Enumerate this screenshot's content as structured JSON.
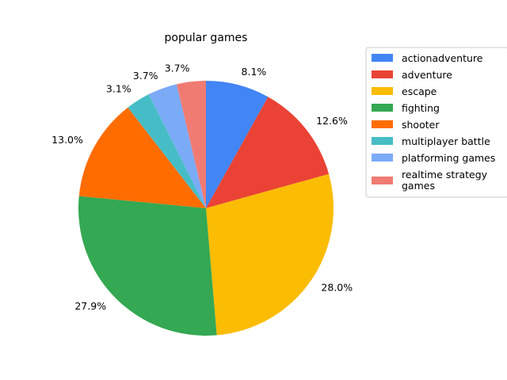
{
  "chart_data": {
    "type": "pie",
    "title": "popular games",
    "start_angle_deg": 90,
    "direction": "clockwise",
    "legend_position": "right",
    "slices": [
      {
        "label": "actionadventure",
        "label_lines": [
          "actionadventure"
        ],
        "value": 8.1,
        "pct_label": "8.1%",
        "color": "#4285f4"
      },
      {
        "label": "adventure",
        "label_lines": [
          "adventure"
        ],
        "value": 12.6,
        "pct_label": "12.6%",
        "color": "#ea4335"
      },
      {
        "label": "escape",
        "label_lines": [
          "escape"
        ],
        "value": 28.0,
        "pct_label": "28.0%",
        "color": "#fbbc04"
      },
      {
        "label": "fighting",
        "label_lines": [
          "fighting"
        ],
        "value": 27.9,
        "pct_label": "27.9%",
        "color": "#34a853"
      },
      {
        "label": "shooter",
        "label_lines": [
          "shooter"
        ],
        "value": 13.0,
        "pct_label": "13.0%",
        "color": "#ff6d01"
      },
      {
        "label": "multiplayer battle",
        "label_lines": [
          "multiplayer battle"
        ],
        "value": 3.1,
        "pct_label": "3.1%",
        "color": "#46bdc6"
      },
      {
        "label": "platforming games",
        "label_lines": [
          "platforming games"
        ],
        "value": 3.7,
        "pct_label": "3.7%",
        "color": "#7baaf7"
      },
      {
        "label": "realtime strategy games",
        "label_lines": [
          "realtime strategy",
          "games"
        ],
        "value": 3.7,
        "pct_label": "3.7%",
        "color": "#f07b72"
      }
    ]
  }
}
